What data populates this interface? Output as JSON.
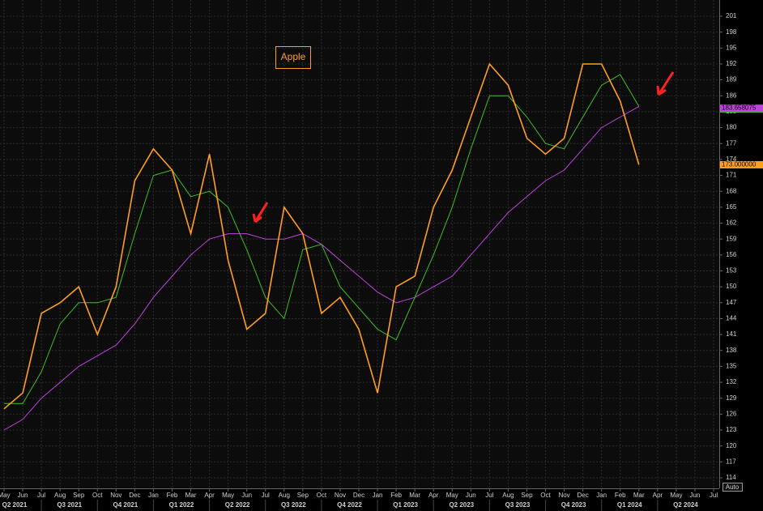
{
  "chart_data": {
    "type": "line",
    "annotation": "Apple",
    "auto_button": "Auto",
    "grid": true,
    "x": [
      "2021-05",
      "2021-06",
      "2021-07",
      "2021-08",
      "2021-09",
      "2021-10",
      "2021-11",
      "2021-12",
      "2022-01",
      "2022-02",
      "2022-03",
      "2022-04",
      "2022-05",
      "2022-06",
      "2022-07",
      "2022-08",
      "2022-09",
      "2022-10",
      "2022-11",
      "2022-12",
      "2023-01",
      "2023-02",
      "2023-03",
      "2023-04",
      "2023-05",
      "2023-06",
      "2023-07",
      "2023-08",
      "2023-09",
      "2023-10",
      "2023-11",
      "2023-12",
      "2024-01",
      "2024-02",
      "2024-03"
    ],
    "series": [
      {
        "color": "#ff9f1a",
        "values": [
          127,
          130,
          145,
          147,
          150,
          141,
          150,
          170,
          176,
          172,
          160,
          175,
          155,
          142,
          145,
          165,
          160,
          145,
          148,
          142,
          130,
          150,
          152,
          165,
          172,
          182,
          192,
          188,
          178,
          175,
          178,
          192,
          192,
          185,
          173
        ],
        "last": {
          "value": 173,
          "label": "173.000000"
        }
      },
      {
        "color": "#3fbf1f",
        "values": [
          128,
          128,
          134,
          143,
          147,
          147,
          148,
          160,
          171,
          172,
          167,
          168,
          165,
          157,
          148,
          144,
          157,
          158,
          150,
          146,
          142,
          140,
          148,
          156,
          165,
          176,
          186,
          186,
          182,
          177,
          176,
          182,
          188,
          190,
          184
        ],
        "last": {
          "value": 183.5184,
          "label": "183.518400"
        }
      },
      {
        "color": "#c040e0",
        "values": [
          123,
          125,
          129,
          132,
          135,
          137,
          139,
          143,
          148,
          152,
          156,
          159,
          160,
          160,
          159,
          159,
          160,
          158,
          155,
          152,
          149,
          147,
          148,
          150,
          152,
          156,
          160,
          164,
          167,
          170,
          172,
          176,
          180,
          182,
          184
        ],
        "last": {
          "value": 183.658075,
          "label": "183.658075"
        }
      }
    ],
    "xlim": [
      "2021-05",
      "2024-07"
    ],
    "xticks": [
      {
        "value": "2021-05",
        "label": "May"
      },
      {
        "value": "2021-06",
        "label": "Jun"
      },
      {
        "value": "2021-07",
        "label": "Jul"
      },
      {
        "value": "2021-08",
        "label": "Aug"
      },
      {
        "value": "2021-09",
        "label": "Sep"
      },
      {
        "value": "2021-10",
        "label": "Oct"
      },
      {
        "value": "2021-11",
        "label": "Nov"
      },
      {
        "value": "2021-12",
        "label": "Dec"
      },
      {
        "value": "2022-01",
        "label": "Jan"
      },
      {
        "value": "2022-02",
        "label": "Feb"
      },
      {
        "value": "2022-03",
        "label": "Mar"
      },
      {
        "value": "2022-04",
        "label": "Apr"
      },
      {
        "value": "2022-05",
        "label": "May"
      },
      {
        "value": "2022-06",
        "label": "Jun"
      },
      {
        "value": "2022-07",
        "label": "Jul"
      },
      {
        "value": "2022-08",
        "label": "Aug"
      },
      {
        "value": "2022-09",
        "label": "Sep"
      },
      {
        "value": "2022-10",
        "label": "Oct"
      },
      {
        "value": "2022-11",
        "label": "Nov"
      },
      {
        "value": "2022-12",
        "label": "Dec"
      },
      {
        "value": "2023-01",
        "label": "Jan"
      },
      {
        "value": "2023-02",
        "label": "Feb"
      },
      {
        "value": "2023-03",
        "label": "Mar"
      },
      {
        "value": "2023-04",
        "label": "Apr"
      },
      {
        "value": "2023-05",
        "label": "May"
      },
      {
        "value": "2023-06",
        "label": "Jun"
      },
      {
        "value": "2023-07",
        "label": "Jul"
      },
      {
        "value": "2023-08",
        "label": "Aug"
      },
      {
        "value": "2023-09",
        "label": "Sep"
      },
      {
        "value": "2023-10",
        "label": "Oct"
      },
      {
        "value": "2023-11",
        "label": "Nov"
      },
      {
        "value": "2023-12",
        "label": "Dec"
      },
      {
        "value": "2024-01",
        "label": "Jan"
      },
      {
        "value": "2024-02",
        "label": "Feb"
      },
      {
        "value": "2024-03",
        "label": "Mar"
      },
      {
        "value": "2024-04",
        "label": "Apr"
      },
      {
        "value": "2024-05",
        "label": "May"
      },
      {
        "value": "2024-06",
        "label": "Jun"
      },
      {
        "value": "2024-07",
        "label": "Jul"
      }
    ],
    "quarters": [
      {
        "value": "2021-04",
        "label": "Q2 2021"
      },
      {
        "value": "2021-07",
        "label": "Q3 2021"
      },
      {
        "value": "2021-10",
        "label": "Q4 2021"
      },
      {
        "value": "2022-01",
        "label": "Q1 2022"
      },
      {
        "value": "2022-04",
        "label": "Q2 2022"
      },
      {
        "value": "2022-07",
        "label": "Q3 2022"
      },
      {
        "value": "2022-10",
        "label": "Q4 2022"
      },
      {
        "value": "2023-01",
        "label": "Q1 2023"
      },
      {
        "value": "2023-04",
        "label": "Q2 2023"
      },
      {
        "value": "2023-07",
        "label": "Q3 2023"
      },
      {
        "value": "2023-10",
        "label": "Q4 2023"
      },
      {
        "value": "2024-01",
        "label": "Q1 2024"
      },
      {
        "value": "2024-04",
        "label": "Q2 2024"
      }
    ],
    "ylim": [
      114,
      201
    ],
    "yticks": [
      114,
      117,
      120,
      123,
      126,
      129,
      132,
      135,
      138,
      141,
      144,
      147,
      150,
      153,
      156,
      159,
      162,
      165,
      168,
      171,
      174,
      177,
      180,
      183,
      186,
      189,
      192,
      195,
      198,
      201
    ]
  }
}
